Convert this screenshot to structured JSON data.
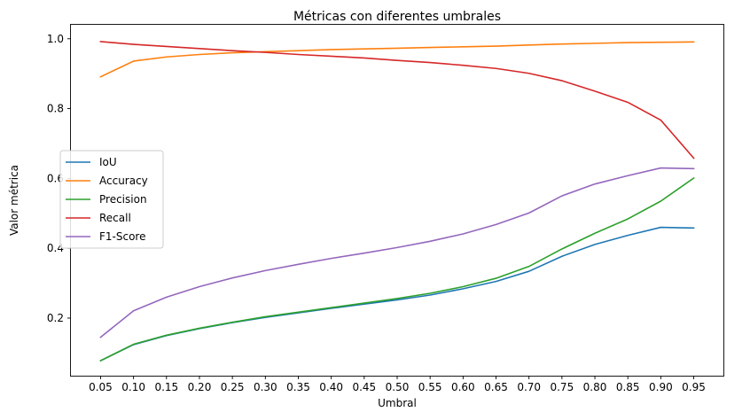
{
  "chart_data": {
    "type": "line",
    "title": "Métricas con diferentes umbrales",
    "xlabel": "Umbral",
    "ylabel": "Valor métrica",
    "x": [
      0.05,
      0.1,
      0.15,
      0.2,
      0.25,
      0.3,
      0.35,
      0.4,
      0.45,
      0.5,
      0.55,
      0.6,
      0.65,
      0.7,
      0.75,
      0.8,
      0.85,
      0.9,
      0.95
    ],
    "x_tick_labels": [
      "0.05",
      "0.10",
      "0.15",
      "0.20",
      "0.25",
      "0.30",
      "0.35",
      "0.40",
      "0.45",
      "0.50",
      "0.55",
      "0.60",
      "0.65",
      "0.70",
      "0.75",
      "0.80",
      "0.85",
      "0.90",
      "0.95"
    ],
    "y_ticks": [
      0.2,
      0.4,
      0.6,
      0.8,
      1.0
    ],
    "y_tick_labels": [
      "0.2",
      "0.4",
      "0.6",
      "0.8",
      "1.0"
    ],
    "xlim": [
      0.005,
      0.995
    ],
    "ylim": [
      0.035,
      1.04
    ],
    "grid": false,
    "legend_position": "center-left",
    "series": [
      {
        "name": "IoU",
        "color": "#1f77b4",
        "values": [
          0.078,
          0.124,
          0.15,
          0.17,
          0.187,
          0.202,
          0.215,
          0.228,
          0.24,
          0.252,
          0.266,
          0.284,
          0.305,
          0.334,
          0.377,
          0.411,
          0.437,
          0.46,
          0.458
        ]
      },
      {
        "name": "Accuracy",
        "color": "#ff7f0e",
        "values": [
          0.891,
          0.936,
          0.948,
          0.955,
          0.96,
          0.963,
          0.966,
          0.969,
          0.971,
          0.973,
          0.975,
          0.977,
          0.979,
          0.982,
          0.985,
          0.987,
          0.989,
          0.99,
          0.991
        ]
      },
      {
        "name": "Precision",
        "color": "#2ca02c",
        "values": [
          0.078,
          0.125,
          0.151,
          0.171,
          0.188,
          0.204,
          0.217,
          0.23,
          0.243,
          0.256,
          0.271,
          0.29,
          0.314,
          0.348,
          0.398,
          0.443,
          0.484,
          0.535,
          0.601
        ]
      },
      {
        "name": "Recall",
        "color": "#d62728",
        "values": [
          0.992,
          0.984,
          0.978,
          0.972,
          0.966,
          0.961,
          0.955,
          0.95,
          0.945,
          0.938,
          0.932,
          0.924,
          0.915,
          0.901,
          0.88,
          0.85,
          0.818,
          0.767,
          0.658
        ]
      },
      {
        "name": "F1-Score",
        "color": "#9467bd",
        "values": [
          0.145,
          0.221,
          0.26,
          0.29,
          0.315,
          0.336,
          0.354,
          0.371,
          0.386,
          0.402,
          0.42,
          0.441,
          0.468,
          0.501,
          0.55,
          0.584,
          0.608,
          0.63,
          0.628
        ]
      }
    ]
  }
}
